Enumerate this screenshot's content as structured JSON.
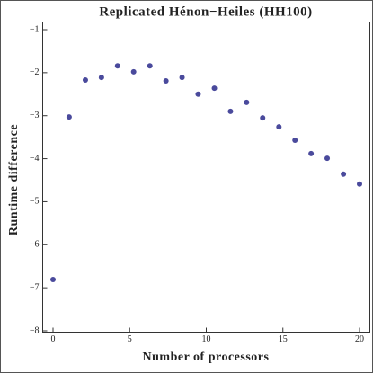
{
  "chart_data": {
    "type": "scatter",
    "title": "Replicated Hénon−Heiles (HH100)",
    "x_label": "Number of processors",
    "y_label": "Runtime difference",
    "color": "#4a4a9c",
    "x": [
      0,
      1.05,
      2.11,
      3.16,
      4.21,
      5.26,
      6.32,
      7.37,
      8.42,
      9.47,
      10.53,
      11.58,
      12.63,
      13.68,
      14.74,
      15.79,
      16.84,
      17.89,
      18.95,
      20
    ],
    "values": [
      -6.81,
      -3.03,
      -2.17,
      -2.11,
      -1.84,
      -1.98,
      -1.84,
      -2.19,
      -2.11,
      -2.5,
      -2.36,
      -2.9,
      -2.69,
      -3.05,
      -3.26,
      -3.57,
      -3.88,
      -3.99,
      -4.36,
      -4.59
    ],
    "xlim": [
      0,
      20
    ],
    "xticks": [
      0,
      5,
      10,
      15,
      20
    ],
    "ylim": [
      -8,
      -1
    ],
    "yticks": [
      {
        "value": -1,
        "label": "−1"
      },
      {
        "value": -2,
        "label": "−2"
      },
      {
        "value": -3,
        "label": "−3"
      },
      {
        "value": -4,
        "label": "−4"
      },
      {
        "value": -5,
        "label": "−5"
      },
      {
        "value": -6,
        "label": "−6"
      },
      {
        "value": -7,
        "label": "−7"
      },
      {
        "value": -8,
        "label": "−8"
      }
    ]
  }
}
